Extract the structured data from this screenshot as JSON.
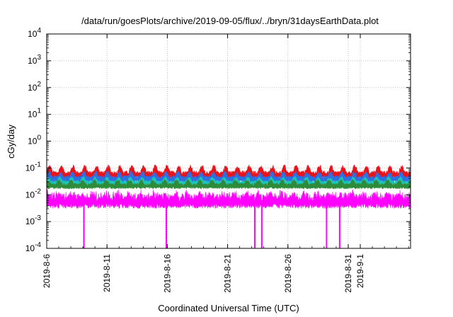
{
  "chart_data": {
    "type": "line",
    "title": "/data/run/goesPlots/archive/2019-09-05/flux/../bryn/31daysEarthData.plot",
    "xlabel": "Coordinated Universal Time (UTC)",
    "ylabel": "cGy/day",
    "y_scale": "log",
    "ylim": [
      0.0001,
      10000
    ],
    "xlim": [
      "2019-08-06",
      "2019-09-05"
    ],
    "grid": true,
    "y_ticks": [
      {
        "base": "10",
        "exp": "-4",
        "value": 0.0001
      },
      {
        "base": "10",
        "exp": "-3",
        "value": 0.001
      },
      {
        "base": "10",
        "exp": "-2",
        "value": 0.01
      },
      {
        "base": "10",
        "exp": "-1",
        "value": 0.1
      },
      {
        "base": "10",
        "exp": "0",
        "value": 1
      },
      {
        "base": "10",
        "exp": "1",
        "value": 10
      },
      {
        "base": "10",
        "exp": "2",
        "value": 100
      },
      {
        "base": "10",
        "exp": "3",
        "value": 1000
      },
      {
        "base": "10",
        "exp": "4",
        "value": 10000
      }
    ],
    "x_ticks": [
      {
        "label": "2019-8-6",
        "date": "2019-08-06"
      },
      {
        "label": "2019-8-11",
        "date": "2019-08-11"
      },
      {
        "label": "2019-8-16",
        "date": "2019-08-16"
      },
      {
        "label": "2019-8-21",
        "date": "2019-08-21"
      },
      {
        "label": "2019-8-26",
        "date": "2019-08-26"
      },
      {
        "label": "2019-8-31",
        "date": "2019-08-31"
      },
      {
        "label": "2019-9-1",
        "date": "2019-09-01"
      }
    ],
    "series": [
      {
        "color": "#e8141c",
        "base": 0.058,
        "amp": 0.38,
        "noise": 0.22
      },
      {
        "color": "#2f6fe0",
        "base": 0.04,
        "amp": 0.3,
        "noise": 0.18
      },
      {
        "color": "#1cc4b8",
        "base": 0.028,
        "amp": 0.25,
        "noise": 0.15
      },
      {
        "color": "#2e8b3a",
        "base": 0.022,
        "amp": 0.25,
        "noise": 0.15
      },
      {
        "color": "#ff00ff",
        "base": 0.0065,
        "amp": 0.2,
        "noise": 0.4,
        "top": 0.03
      }
    ],
    "dropouts": [
      {
        "date": "2019-08-09T02:00",
        "min": 0.0001
      },
      {
        "date": "2019-08-15T22:00",
        "min": 0.0001
      },
      {
        "date": "2019-08-23T06:00",
        "min": 0.0001
      },
      {
        "date": "2019-08-23T20:00",
        "min": 0.0001
      },
      {
        "date": "2019-08-29T05:00",
        "min": 0.0001
      },
      {
        "date": "2019-08-30T07:00",
        "min": 0.0001
      }
    ]
  }
}
